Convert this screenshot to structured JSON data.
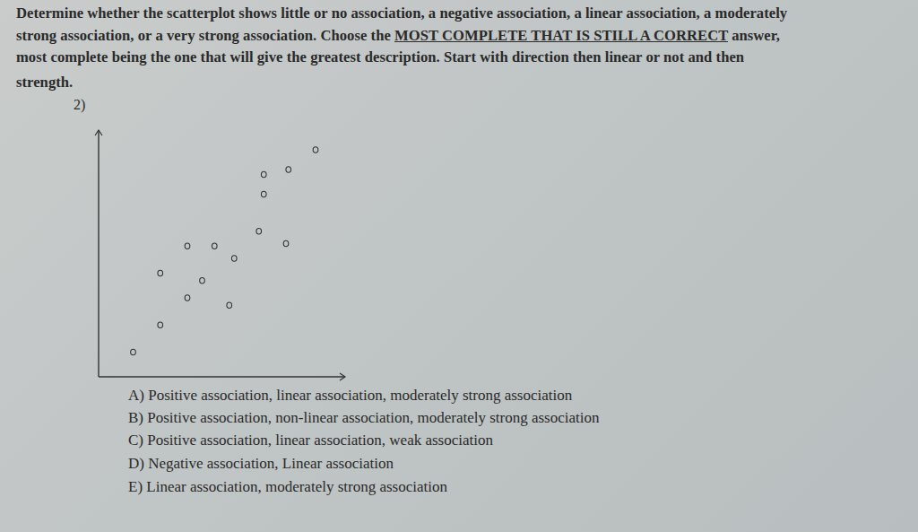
{
  "instructions": [
    [
      {
        "text": "Determine whether the scatterplot shows little or no association, a negative association, a linear association, a moderately",
        "underline": false
      }
    ],
    [
      {
        "text": "strong association, or a very strong association. Choose the ",
        "underline": false
      },
      {
        "text": "MOST COMPLETE THAT IS STILL A CORRECT",
        "underline": true
      },
      {
        "text": " answer,",
        "underline": false
      }
    ],
    [
      {
        "text": "most complete being the one that will give the greatest description. Start with direction then linear or not and then",
        "underline": false
      }
    ],
    [
      {
        "text": "strength.",
        "underline": false
      }
    ]
  ],
  "question_number": "2)",
  "chart_data": {
    "type": "scatter",
    "x": [
      1.4,
      2.5,
      2.5,
      3.6,
      3.6,
      4.2,
      4.7,
      5.3,
      5.5,
      6.5,
      6.7,
      6.7,
      7.6,
      7.7,
      8.8
    ],
    "values": [
      1.0,
      2.1,
      4.2,
      3.2,
      5.3,
      3.9,
      5.3,
      2.9,
      4.8,
      5.9,
      7.4,
      8.2,
      5.4,
      8.4,
      9.2
    ],
    "xlim": [
      0,
      10
    ],
    "ylim": [
      0,
      10
    ],
    "tick_labels": false,
    "marker": "circle",
    "color": "#333333"
  },
  "options": [
    "A) Positive association, linear association, moderately strong association",
    "B) Positive association, non-linear association, moderately strong association",
    "C) Positive association, linear association, weak association",
    "D) Negative association, Linear association",
    "E) Linear association, moderately strong association"
  ]
}
